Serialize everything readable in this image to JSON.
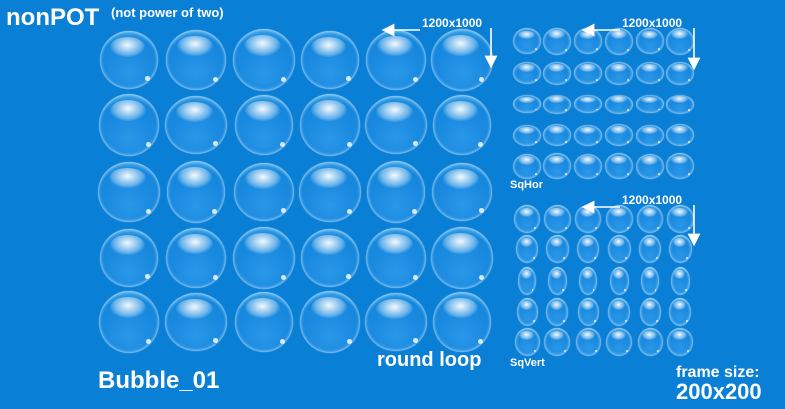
{
  "title": "nonPOT",
  "subtitle": "(not power of two)",
  "name": "Bubble_01",
  "loop_label": "round loop",
  "frame_size_label": "frame size:",
  "frame_size_value": "200x200",
  "sheets": [
    {
      "label": "",
      "dims": "1200x1000"
    },
    {
      "label": "SqHor",
      "dims": "1200x1000"
    },
    {
      "label": "SqVert",
      "dims": "1200x1000"
    }
  ],
  "colors": {
    "background": "#0a7fd6",
    "text": "#ffffff"
  }
}
